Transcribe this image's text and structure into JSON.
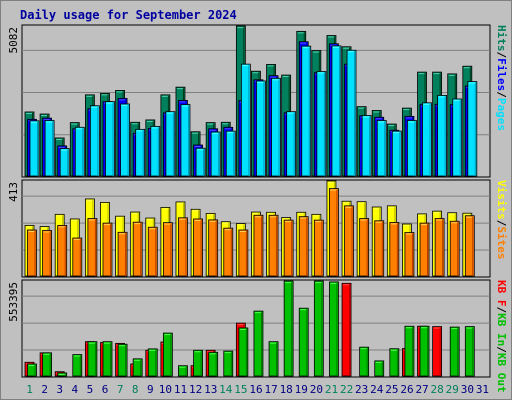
{
  "chart_title": "Daily usage for September 2024",
  "colors": {
    "background": "#c0c0c0",
    "plot_background": "#c0c0c0",
    "grid": "#808080",
    "title": "#0000a0",
    "hits": "#00805c",
    "files": "#0000ff",
    "pages": "#00e0ff",
    "visits": "#ffff00",
    "sites": "#ff8000",
    "kb_in": "#00c000",
    "kb_out": "#00c000",
    "kb_f": "#ff0000",
    "weekend_label": "#00805c",
    "weekday_label": "#000080",
    "sep_labels": "#000000"
  },
  "chart_data": [
    {
      "type": "bar",
      "panel": "top",
      "y_max_label": "5082",
      "ylim": [
        0,
        5082
      ],
      "categories": [
        "1",
        "2",
        "3",
        "4",
        "5",
        "6",
        "7",
        "8",
        "9",
        "10",
        "11",
        "12",
        "13",
        "14",
        "15",
        "16",
        "17",
        "18",
        "19",
        "20",
        "21",
        "22",
        "23",
        "24",
        "25",
        "26",
        "27",
        "28",
        "29",
        "30",
        "31"
      ],
      "right_labels": [
        "Hits",
        "Files",
        "Pages"
      ],
      "series": [
        {
          "name": "Hits",
          "color": "#00805c",
          "values": [
            2170,
            2100,
            1290,
            1810,
            2750,
            2800,
            2900,
            1820,
            1900,
            2750,
            3010,
            1500,
            1810,
            1820,
            5080,
            3550,
            3780,
            3420,
            4900,
            4250,
            4760,
            4380,
            2350,
            2220,
            1760,
            2300,
            3520,
            3520,
            3460,
            3720,
            0
          ]
        },
        {
          "name": "Files",
          "color": "#0000ff",
          "values": [
            1920,
            1960,
            1020,
            1600,
            2280,
            2520,
            2630,
            1450,
            1610,
            2140,
            2560,
            1050,
            1600,
            1650,
            2560,
            3260,
            3400,
            2140,
            4550,
            3500,
            4480,
            3790,
            2040,
            1990,
            1550,
            2020,
            2420,
            2430,
            2420,
            3050,
            0
          ]
        },
        {
          "name": "Pages",
          "color": "#00e0ff",
          "values": [
            1870,
            1880,
            930,
            1650,
            2380,
            2520,
            2440,
            1580,
            1680,
            2180,
            2420,
            940,
            1490,
            1520,
            3790,
            3220,
            3310,
            2180,
            4400,
            3540,
            4410,
            4260,
            2050,
            1880,
            1520,
            1880,
            2480,
            2730,
            2610,
            3200,
            0
          ]
        }
      ]
    },
    {
      "type": "bar",
      "panel": "middle",
      "y_max_label": "413",
      "ylim": [
        0,
        413
      ],
      "categories": [
        "1",
        "2",
        "3",
        "4",
        "5",
        "6",
        "7",
        "8",
        "9",
        "10",
        "11",
        "12",
        "13",
        "14",
        "15",
        "16",
        "17",
        "18",
        "19",
        "20",
        "21",
        "22",
        "23",
        "24",
        "25",
        "26",
        "27",
        "28",
        "29",
        "30",
        "31"
      ],
      "right_labels": [
        "Visits",
        "Sites"
      ],
      "series": [
        {
          "name": "Visits",
          "color": "#ffff00",
          "values": [
            220,
            215,
            268,
            248,
            335,
            320,
            260,
            278,
            252,
            298,
            322,
            290,
            272,
            236,
            228,
            278,
            277,
            254,
            277,
            268,
            413,
            325,
            323,
            300,
            305,
            226,
            270,
            282,
            275,
            273,
            0
          ]
        },
        {
          "name": "Sites",
          "color": "#ff8000",
          "values": [
            200,
            198,
            220,
            165,
            250,
            230,
            190,
            234,
            212,
            232,
            253,
            248,
            244,
            208,
            200,
            264,
            264,
            243,
            258,
            243,
            380,
            305,
            250,
            240,
            233,
            189,
            230,
            250,
            238,
            262,
            0
          ]
        }
      ]
    },
    {
      "type": "bar",
      "panel": "bottom",
      "y_max_label": "553395",
      "ylim": [
        0,
        553395
      ],
      "categories": [
        "1",
        "2",
        "3",
        "4",
        "5",
        "6",
        "7",
        "8",
        "9",
        "10",
        "11",
        "12",
        "13",
        "14",
        "15",
        "16",
        "17",
        "18",
        "19",
        "20",
        "21",
        "22",
        "23",
        "24",
        "25",
        "26",
        "27",
        "28",
        "29",
        "30",
        "31"
      ],
      "right_labels": [
        "KB F",
        "KB In",
        "KB Out"
      ],
      "series": [
        {
          "name": "KB F",
          "color": "#ff0000",
          "values": [
            80000,
            135000,
            25000,
            0,
            200000,
            195000,
            190000,
            70000,
            150000,
            198000,
            0,
            60000,
            150000,
            0,
            308000,
            0,
            0,
            0,
            0,
            0,
            0,
            540000,
            0,
            0,
            0,
            160000,
            290000,
            288000,
            0,
            0,
            0
          ]
        },
        {
          "name": "KB Out",
          "color": "#00c000",
          "values": [
            70000,
            135000,
            18000,
            125000,
            200000,
            200000,
            185000,
            100000,
            158000,
            250000,
            60000,
            150000,
            138000,
            145000,
            280000,
            378000,
            200000,
            553000,
            395000,
            553000,
            548000,
            0,
            168000,
            88000,
            159000,
            290000,
            290000,
            0,
            285000,
            288000,
            0
          ]
        }
      ]
    }
  ],
  "x_labels": [
    "1",
    "2",
    "3",
    "4",
    "5",
    "6",
    "7",
    "8",
    "9",
    "10",
    "11",
    "12",
    "13",
    "14",
    "15",
    "16",
    "17",
    "18",
    "19",
    "20",
    "21",
    "22",
    "23",
    "24",
    "25",
    "26",
    "27",
    "28",
    "29",
    "30",
    "31"
  ],
  "weekend_days": [
    1,
    7,
    8,
    14,
    15,
    21,
    22,
    28,
    29
  ]
}
